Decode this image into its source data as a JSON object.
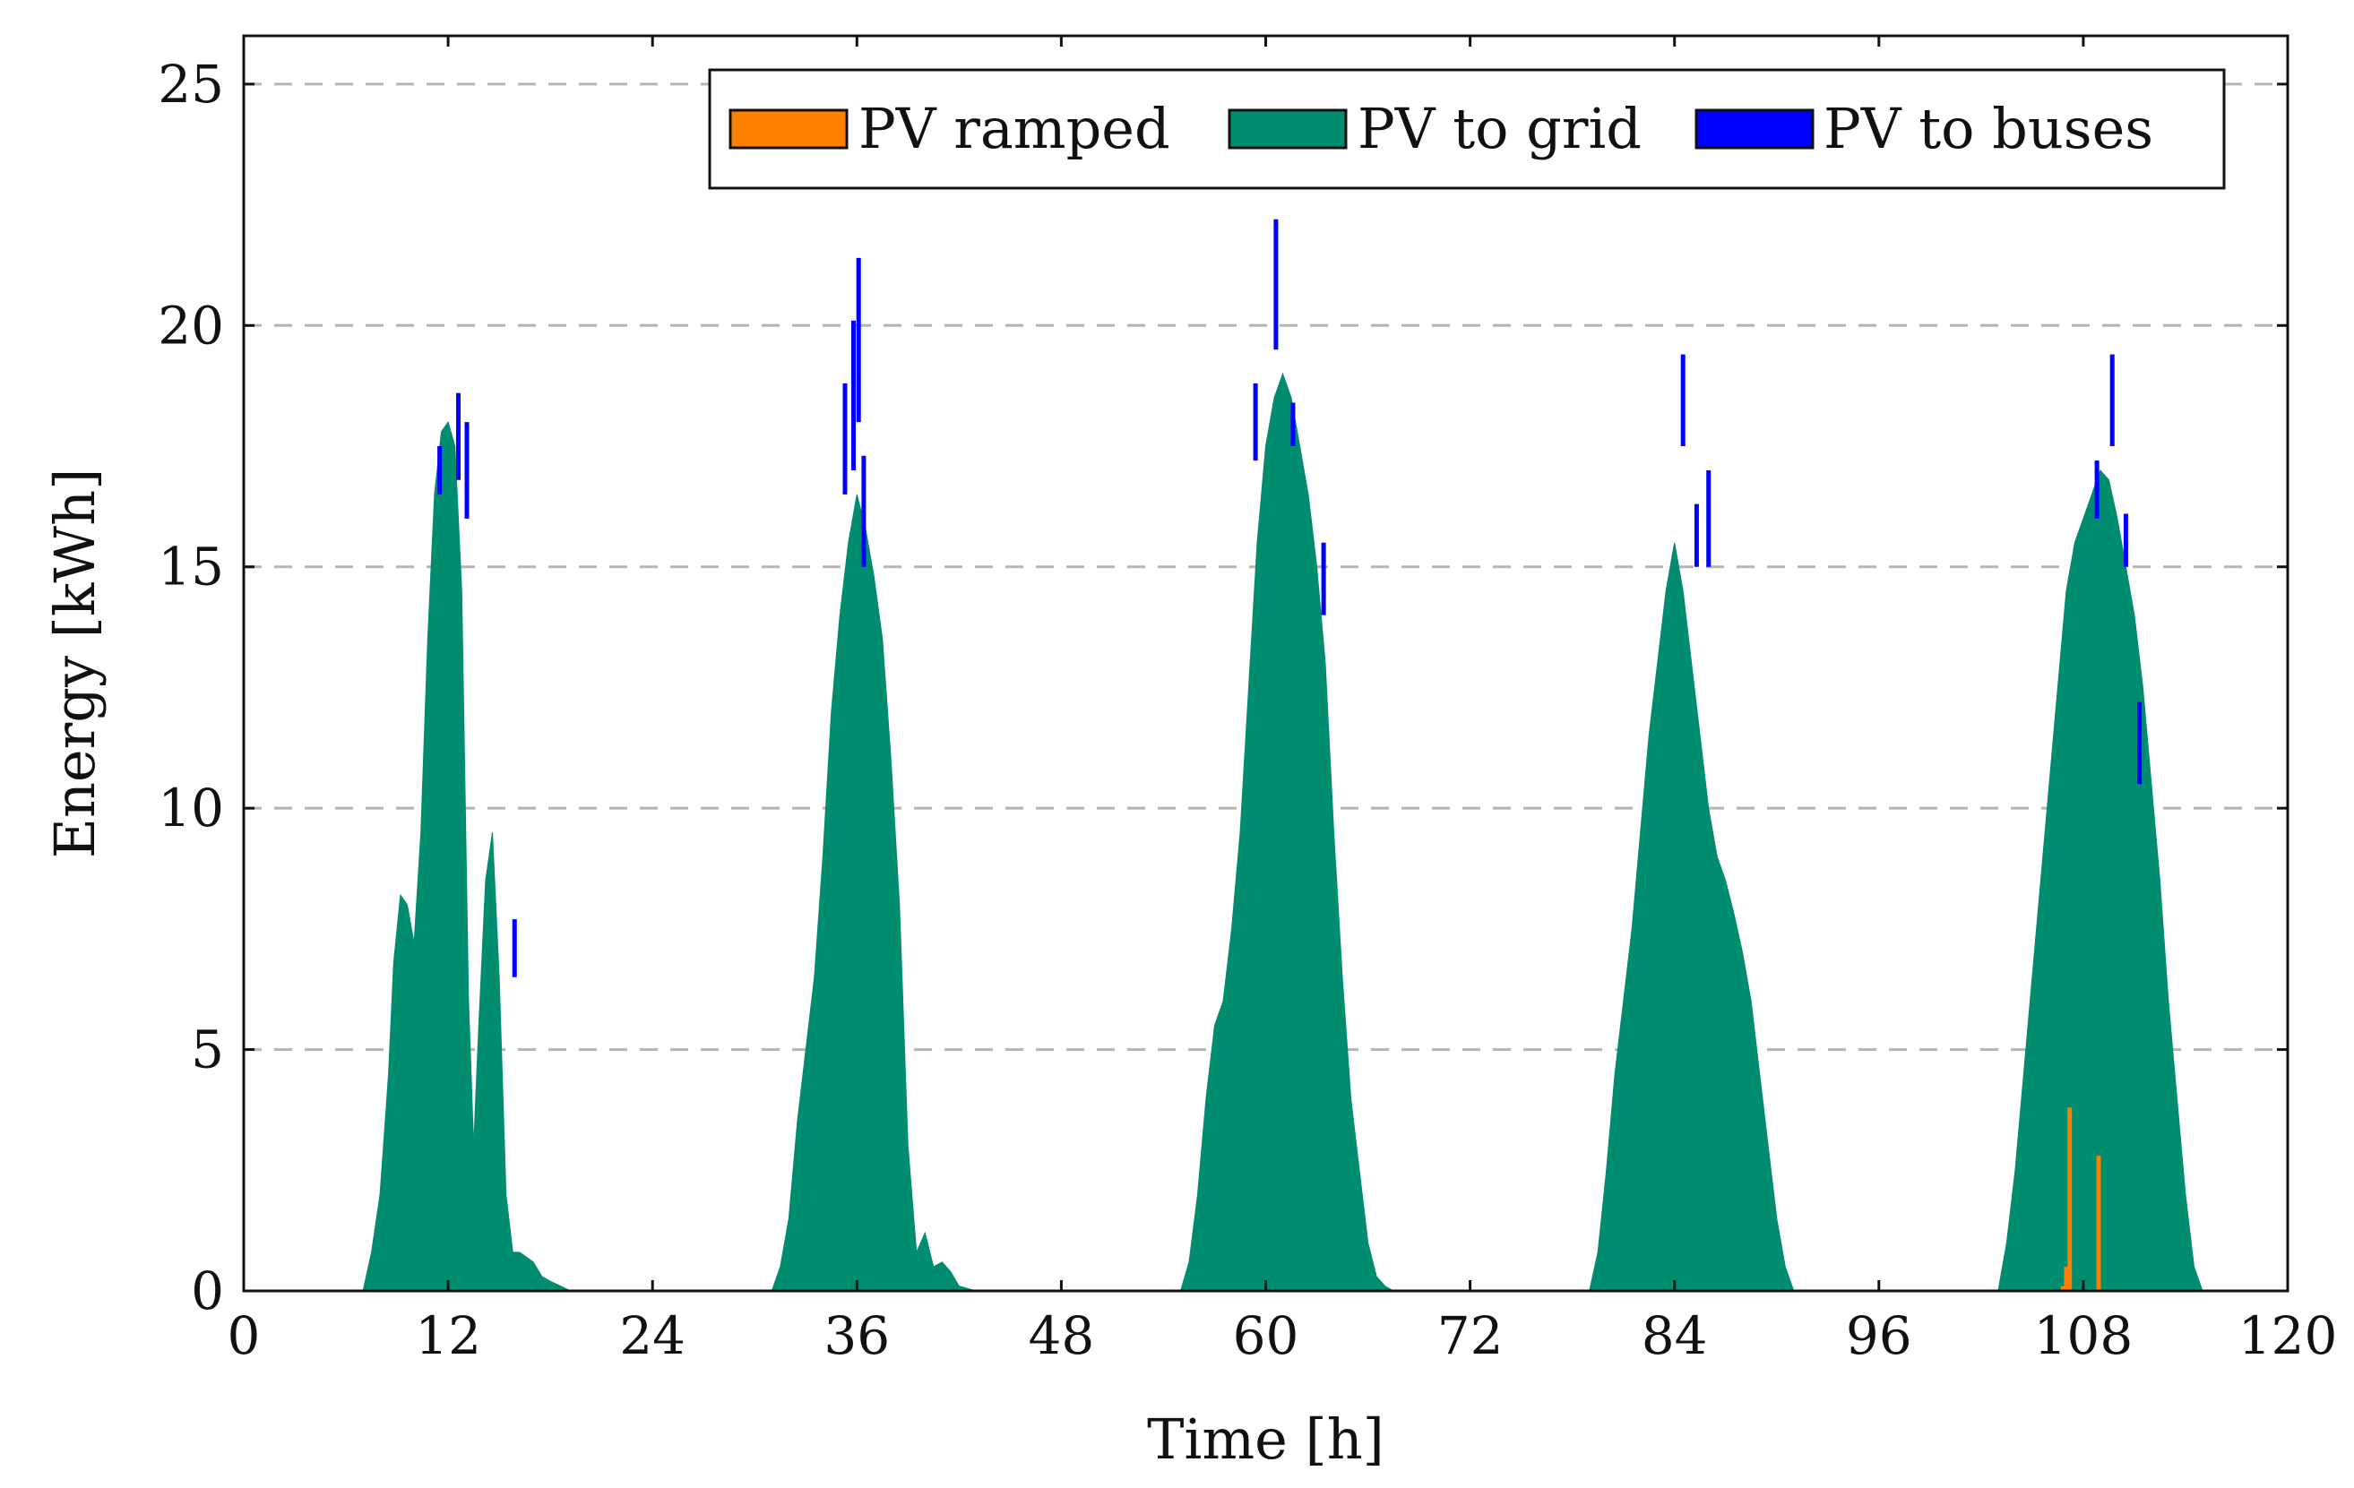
{
  "chart_data": {
    "type": "area",
    "title": "",
    "xlabel": "Time [h]",
    "ylabel": "Energy [kWh]",
    "xlim": [
      0,
      120
    ],
    "ylim": [
      0,
      26
    ],
    "xticks": [
      0,
      12,
      24,
      36,
      48,
      60,
      72,
      84,
      96,
      108,
      120
    ],
    "yticks": [
      0,
      5,
      10,
      15,
      20,
      25
    ],
    "grid": "horizontal dashed",
    "legend_position": "top-right",
    "legend": [
      {
        "name": "PV ramped",
        "color": "#ff7f00"
      },
      {
        "name": "PV to grid",
        "color": "#008c6e"
      },
      {
        "name": "PV to buses",
        "color": "#0000ff"
      }
    ],
    "series": [
      {
        "name": "PV to grid",
        "x": [
          0,
          7.0,
          7.5,
          8.0,
          8.5,
          8.8,
          9.2,
          9.6,
          10.0,
          10.4,
          10.8,
          11.2,
          11.6,
          12.0,
          12.4,
          12.8,
          13.2,
          13.5,
          13.8,
          14.2,
          14.6,
          15.0,
          15.4,
          15.8,
          16.2,
          16.6,
          17.0,
          17.5,
          18.0,
          18.6,
          19.2,
          24,
          31.0,
          31.5,
          32.0,
          32.5,
          33.0,
          33.5,
          34.0,
          34.5,
          35.0,
          35.5,
          36.0,
          36.5,
          37.0,
          37.5,
          38.0,
          38.5,
          39.0,
          39.5,
          40.0,
          40.5,
          41.0,
          41.5,
          42.0,
          42.5,
          43.0,
          43.5,
          48,
          55.0,
          55.5,
          56.0,
          56.5,
          57.0,
          57.5,
          58.0,
          58.5,
          59.0,
          59.5,
          60.0,
          60.5,
          61.0,
          61.5,
          62.0,
          62.5,
          63.0,
          63.5,
          64.0,
          64.5,
          65.0,
          65.5,
          66.0,
          66.5,
          67.0,
          67.5,
          72,
          79.0,
          79.5,
          80.0,
          80.5,
          81.0,
          81.5,
          82.0,
          82.5,
          83.0,
          83.5,
          84.0,
          84.5,
          85.0,
          85.5,
          86.0,
          86.5,
          87.0,
          87.5,
          88.0,
          88.5,
          89.0,
          89.5,
          90.0,
          90.5,
          91.0,
          91.5,
          96,
          103.0,
          103.5,
          104.0,
          104.5,
          105.0,
          105.5,
          106.0,
          106.5,
          107.0,
          107.5,
          108.0,
          108.5,
          109.0,
          109.5,
          110.0,
          110.5,
          111.0,
          111.5,
          112.0,
          112.5,
          113.0,
          113.5,
          114.0,
          114.5,
          115.0,
          115.5,
          120
        ],
        "values": [
          0,
          0,
          0.8,
          2.0,
          4.5,
          6.8,
          8.2,
          8.0,
          7.2,
          9.5,
          13.5,
          16.5,
          17.8,
          18.0,
          17.5,
          14.5,
          6.0,
          3.0,
          5.5,
          8.5,
          9.5,
          6.5,
          2.0,
          0.8,
          0.8,
          0.7,
          0.6,
          0.3,
          0.2,
          0.1,
          0,
          0,
          0,
          0.5,
          1.5,
          3.5,
          5.0,
          6.5,
          9.0,
          12.0,
          14.0,
          15.5,
          16.5,
          15.8,
          14.8,
          13.5,
          11.0,
          8.0,
          3.0,
          0.8,
          1.2,
          0.5,
          0.6,
          0.4,
          0.1,
          0.05,
          0,
          0,
          0,
          0,
          0.6,
          2.0,
          4.0,
          5.5,
          6.0,
          7.5,
          9.5,
          12.5,
          15.5,
          17.5,
          18.5,
          19.0,
          18.5,
          17.5,
          16.5,
          15.0,
          13.0,
          9.5,
          6.5,
          4.0,
          2.5,
          1.0,
          0.3,
          0.1,
          0,
          0,
          0,
          0.8,
          2.5,
          4.5,
          6.0,
          7.5,
          9.5,
          11.5,
          13.0,
          14.5,
          15.5,
          14.5,
          13.0,
          11.5,
          10.0,
          9.0,
          8.5,
          7.8,
          7.0,
          6.0,
          4.5,
          3.0,
          1.5,
          0.5,
          0,
          0,
          0,
          0,
          1.0,
          2.5,
          4.5,
          6.5,
          8.5,
          10.5,
          12.5,
          14.5,
          15.5,
          16.0,
          16.5,
          17.0,
          16.8,
          16.0,
          15.0,
          14.0,
          12.5,
          10.5,
          8.5,
          6.0,
          4.0,
          2.0,
          0.5,
          0,
          0,
          0
        ]
      },
      {
        "name": "PV to buses",
        "spikes": [
          {
            "x": 11.5,
            "bottom": 16.5,
            "top": 17.5
          },
          {
            "x": 12.6,
            "bottom": 16.8,
            "top": 18.6
          },
          {
            "x": 13.1,
            "bottom": 16.0,
            "top": 18.0
          },
          {
            "x": 15.9,
            "bottom": 6.5,
            "top": 7.7
          },
          {
            "x": 35.3,
            "bottom": 16.5,
            "top": 18.8
          },
          {
            "x": 35.8,
            "bottom": 17.0,
            "top": 20.1
          },
          {
            "x": 36.1,
            "bottom": 18.0,
            "top": 21.4
          },
          {
            "x": 36.4,
            "bottom": 15.0,
            "top": 17.3
          },
          {
            "x": 59.4,
            "bottom": 17.2,
            "top": 18.8
          },
          {
            "x": 60.6,
            "bottom": 19.5,
            "top": 22.2
          },
          {
            "x": 61.6,
            "bottom": 17.5,
            "top": 18.4
          },
          {
            "x": 63.4,
            "bottom": 14.0,
            "top": 15.5
          },
          {
            "x": 84.5,
            "bottom": 17.5,
            "top": 19.4
          },
          {
            "x": 85.3,
            "bottom": 15.0,
            "top": 16.3
          },
          {
            "x": 86.0,
            "bottom": 15.0,
            "top": 17.0
          },
          {
            "x": 108.8,
            "bottom": 16.0,
            "top": 17.2
          },
          {
            "x": 109.7,
            "bottom": 17.5,
            "top": 19.4
          },
          {
            "x": 110.5,
            "bottom": 15.0,
            "top": 16.1
          },
          {
            "x": 111.3,
            "bottom": 10.5,
            "top": 12.2
          }
        ]
      },
      {
        "name": "PV ramped",
        "spikes": [
          {
            "x": 106.8,
            "bottom": 0,
            "top": 0.1
          },
          {
            "x": 107.0,
            "bottom": 0,
            "top": 0.5
          },
          {
            "x": 107.2,
            "bottom": 0,
            "top": 3.8
          },
          {
            "x": 108.9,
            "bottom": 0,
            "top": 2.8
          }
        ]
      }
    ]
  }
}
